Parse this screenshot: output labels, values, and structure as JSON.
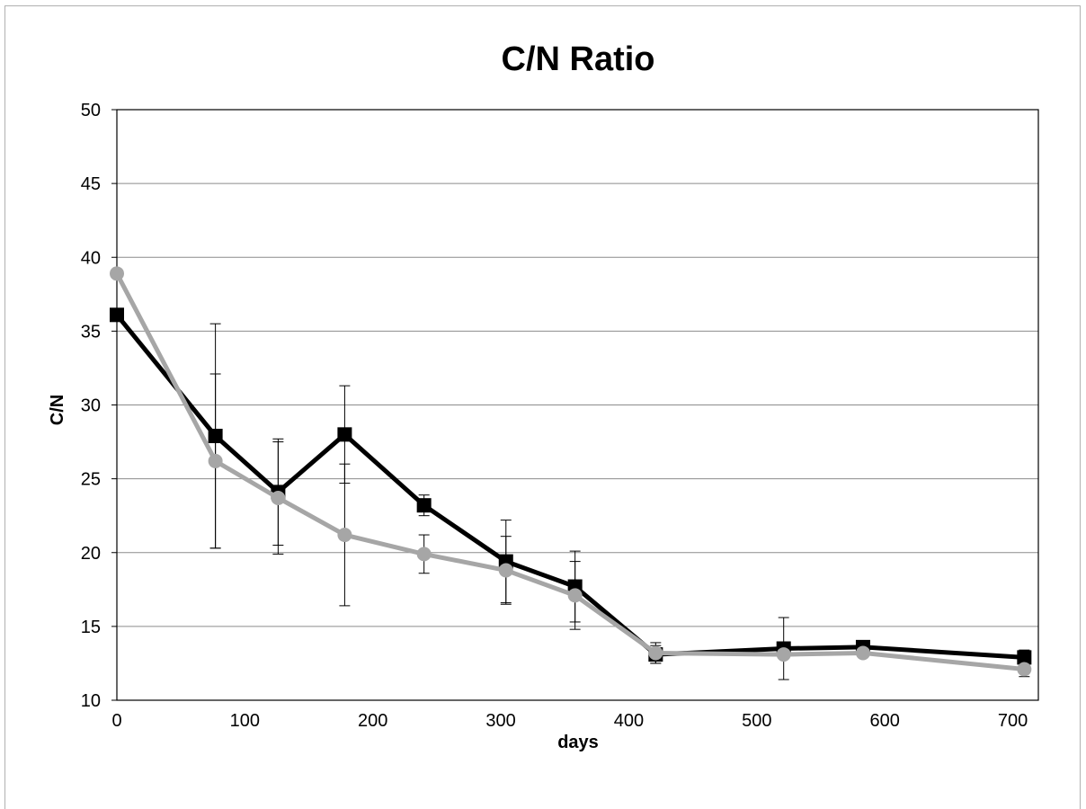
{
  "chart_data": {
    "type": "line",
    "title": "C/N Ratio",
    "xlabel": "days",
    "ylabel": "C/N",
    "xlim": [
      0,
      720
    ],
    "ylim": [
      10,
      50
    ],
    "xticks": [
      "0",
      "100",
      "200",
      "300",
      "400",
      "500",
      "600",
      "700"
    ],
    "yticks": [
      "10",
      "15",
      "20",
      "25",
      "30",
      "35",
      "40",
      "45",
      "50"
    ],
    "grid": "horizontal",
    "legend": "none",
    "series": [
      {
        "color": "#000000",
        "marker": "square",
        "x": [
          0,
          77,
          126,
          178,
          240,
          304,
          358,
          421,
          521,
          583,
          709
        ],
        "y": [
          36.1,
          27.9,
          24.1,
          28.0,
          23.2,
          19.4,
          17.7,
          13.1,
          13.5,
          13.6,
          12.9
        ],
        "err": [
          0,
          7.6,
          3.6,
          3.3,
          0.7,
          2.8,
          2.4,
          0.6,
          2.1,
          0,
          0.5
        ]
      },
      {
        "color": "#a6a6a6",
        "marker": "circle",
        "x": [
          0,
          77,
          126,
          178,
          240,
          304,
          358,
          421,
          521,
          583,
          709
        ],
        "y": [
          38.9,
          26.2,
          23.7,
          21.2,
          19.9,
          18.8,
          17.1,
          13.2,
          13.1,
          13.2,
          12.1
        ],
        "err": [
          0,
          5.9,
          3.8,
          4.8,
          1.3,
          2.3,
          2.3,
          0.7,
          0,
          0,
          0.5
        ]
      }
    ]
  }
}
